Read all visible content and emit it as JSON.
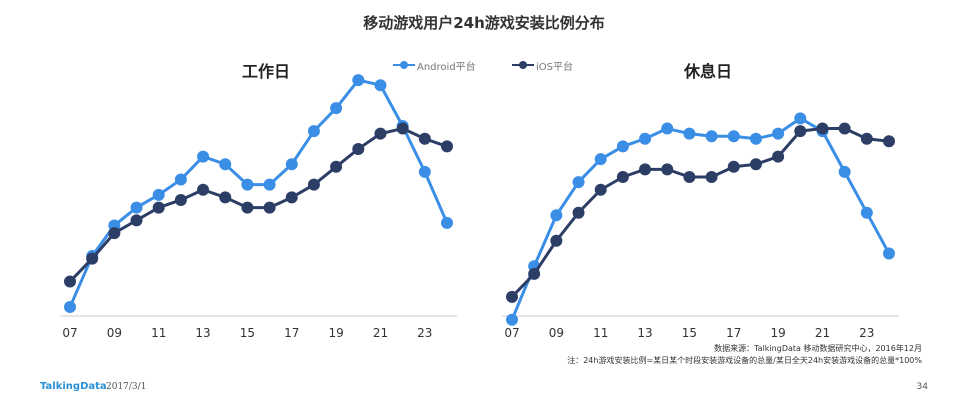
{
  "title": "移动游戏用户24h游戏安装比例分布",
  "legend": {
    "android": "Android平台",
    "ios": "iOS平台"
  },
  "colors": {
    "android": "#3a8ee6",
    "ios": "#2d3e66",
    "axis": "#cccccc"
  },
  "footnote": {
    "source": "数据来源：TalkingData 移动数据研究中心，2016年12月",
    "note": "注：24h游戏安装比例=某日某个时段安装游戏设备的总量/某日全天24h安装游戏设备的总量*100%"
  },
  "footer": {
    "brand": "TalkingData",
    "date": "2017/3/1",
    "page": "34"
  },
  "chart_data": [
    {
      "type": "line",
      "title": "工作日",
      "x": [
        7,
        8,
        9,
        10,
        11,
        12,
        13,
        14,
        15,
        16,
        17,
        18,
        19,
        20,
        21,
        22,
        23,
        24
      ],
      "xtick_labels": [
        "07",
        "09",
        "11",
        "13",
        "15",
        "17",
        "19",
        "21",
        "23"
      ],
      "xtick_values": [
        7,
        9,
        11,
        13,
        15,
        17,
        19,
        21,
        23
      ],
      "ylim": [
        0,
        10
      ],
      "series": [
        {
          "name": "Android平台",
          "key": "android",
          "values": [
            0.9,
            2.9,
            4.1,
            4.8,
            5.3,
            5.9,
            6.8,
            6.5,
            5.7,
            5.7,
            6.5,
            7.8,
            8.7,
            9.8,
            9.6,
            8.0,
            6.2,
            4.2
          ]
        },
        {
          "name": "iOS平台",
          "key": "ios",
          "values": [
            1.9,
            2.8,
            3.8,
            4.3,
            4.8,
            5.1,
            5.5,
            5.2,
            4.8,
            4.8,
            5.2,
            5.7,
            6.4,
            7.1,
            7.7,
            7.9,
            7.5,
            7.2
          ]
        }
      ]
    },
    {
      "type": "line",
      "title": "休息日",
      "x": [
        7,
        8,
        9,
        10,
        11,
        12,
        13,
        14,
        15,
        16,
        17,
        18,
        19,
        20,
        21,
        22,
        23,
        24
      ],
      "xtick_labels": [
        "07",
        "09",
        "11",
        "13",
        "15",
        "17",
        "19",
        "21",
        "23"
      ],
      "xtick_values": [
        7,
        9,
        11,
        13,
        15,
        17,
        19,
        21,
        23
      ],
      "ylim": [
        0,
        10
      ],
      "series": [
        {
          "name": "Android平台",
          "key": "android",
          "values": [
            0.4,
            2.5,
            4.5,
            5.8,
            6.7,
            7.2,
            7.5,
            7.9,
            7.7,
            7.6,
            7.6,
            7.5,
            7.7,
            8.3,
            7.8,
            6.2,
            4.6,
            3.0
          ]
        },
        {
          "name": "iOS平台",
          "key": "ios",
          "values": [
            1.3,
            2.2,
            3.5,
            4.6,
            5.5,
            6.0,
            6.3,
            6.3,
            6.0,
            6.0,
            6.4,
            6.5,
            6.8,
            7.8,
            7.9,
            7.9,
            7.5,
            7.4
          ]
        }
      ]
    }
  ]
}
